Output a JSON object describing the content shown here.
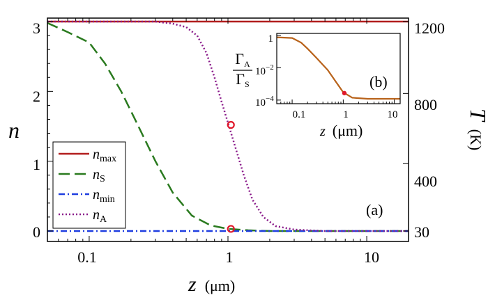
{
  "chart_data": [
    {
      "id": "main",
      "type": "line",
      "panel_label": "(a)",
      "xlabel": {
        "var": "z",
        "unit": "(μm)"
      },
      "ylabel_left": "n",
      "ylabel_right": {
        "var": "T",
        "unit": "(K)"
      },
      "x_scale": "log",
      "xlim": [
        0.05,
        20
      ],
      "ylim": [
        -0.15,
        3.05
      ],
      "x_ticks": [
        {
          "value": 0.1,
          "label": "0.1"
        },
        {
          "value": 1,
          "label": "1"
        },
        {
          "value": 10,
          "label": "10"
        }
      ],
      "y_ticks_left": [
        {
          "value": 0,
          "label": "0"
        },
        {
          "value": 1,
          "label": "1"
        },
        {
          "value": 2,
          "label": "2"
        },
        {
          "value": 3,
          "label": "3"
        }
      ],
      "y_ticks_right": [
        {
          "value": 0,
          "label": "30"
        },
        {
          "value": 0.97,
          "label": "400"
        },
        {
          "value": 1.97,
          "label": "800"
        },
        {
          "value": 3,
          "label": "1200"
        }
      ],
      "series": [
        {
          "key": "nmax",
          "name": "n",
          "sub": "max",
          "color": "#b21e1e",
          "dash": "",
          "points": [
            [
              0.05,
              3.0
            ],
            [
              20,
              3.0
            ]
          ]
        },
        {
          "key": "nS",
          "name": "n",
          "sub": "S",
          "color": "#2a7a1f",
          "dash": "16,7",
          "points": [
            [
              0.05,
              2.98
            ],
            [
              0.07,
              2.85
            ],
            [
              0.1,
              2.7
            ],
            [
              0.13,
              2.4
            ],
            [
              0.17,
              2.0
            ],
            [
              0.22,
              1.55
            ],
            [
              0.3,
              1.0
            ],
            [
              0.4,
              0.55
            ],
            [
              0.55,
              0.22
            ],
            [
              0.75,
              0.08
            ],
            [
              1.0,
              0.03
            ],
            [
              1.4,
              0.01
            ],
            [
              2.0,
              0.0
            ],
            [
              20,
              0.0
            ]
          ]
        },
        {
          "key": "nmin",
          "name": "n",
          "sub": "min",
          "color": "#1f3ee0",
          "dash": "9,4,2,4",
          "points": [
            [
              0.05,
              0.0
            ],
            [
              20,
              0.0
            ]
          ]
        },
        {
          "key": "nA",
          "name": "n",
          "sub": "A",
          "color": "#8a1a8a",
          "dash": "2,3",
          "points": [
            [
              0.05,
              3.0
            ],
            [
              0.3,
              3.0
            ],
            [
              0.4,
              2.97
            ],
            [
              0.5,
              2.92
            ],
            [
              0.6,
              2.8
            ],
            [
              0.7,
              2.55
            ],
            [
              0.8,
              2.2
            ],
            [
              0.9,
              1.85
            ],
            [
              1.0,
              1.55
            ],
            [
              1.15,
              1.15
            ],
            [
              1.3,
              0.8
            ],
            [
              1.5,
              0.45
            ],
            [
              1.8,
              0.2
            ],
            [
              2.2,
              0.07
            ],
            [
              3.0,
              0.02
            ],
            [
              5.0,
              0.0
            ],
            [
              20,
              0.0
            ]
          ]
        }
      ],
      "markers": [
        {
          "x": 1.05,
          "y": 1.52
        },
        {
          "x": 1.05,
          "y": 0.03
        }
      ],
      "marker_color": "#e0182a"
    },
    {
      "id": "inset",
      "type": "line",
      "panel_label": "(b)",
      "xlabel": {
        "var": "z",
        "unit": "(μm)"
      },
      "ylabel": {
        "num": "Γ",
        "num_sub": "A",
        "den": "Γ",
        "den_sub": "S"
      },
      "x_scale": "log",
      "y_scale": "log",
      "xlim": [
        0.05,
        13
      ],
      "ylim": [
        6e-05,
        1.3
      ],
      "x_ticks": [
        {
          "value": 0.1,
          "label": "0.1"
        },
        {
          "value": 1,
          "label": "1"
        },
        {
          "value": 10,
          "label": "10"
        }
      ],
      "y_ticks": [
        {
          "value": 1,
          "base": "1",
          "exp": ""
        },
        {
          "value": 0.01,
          "base": "10",
          "exp": "−2"
        },
        {
          "value": 0.0001,
          "base": "10",
          "exp": "−4"
        }
      ],
      "series": [
        {
          "key": "ratio",
          "color": "#b8621a",
          "points": [
            [
              0.05,
              0.75
            ],
            [
              0.1,
              0.68
            ],
            [
              0.15,
              0.35
            ],
            [
              0.2,
              0.15
            ],
            [
              0.3,
              0.04
            ],
            [
              0.5,
              0.007
            ],
            [
              0.7,
              0.0015
            ],
            [
              1.0,
              0.0003
            ],
            [
              1.5,
              0.00014
            ],
            [
              3,
              0.00012
            ],
            [
              13,
              0.00012
            ]
          ]
        }
      ],
      "markers": [
        {
          "x": 1.05,
          "y": 0.00027
        }
      ],
      "marker_color": "#e0182a"
    }
  ]
}
